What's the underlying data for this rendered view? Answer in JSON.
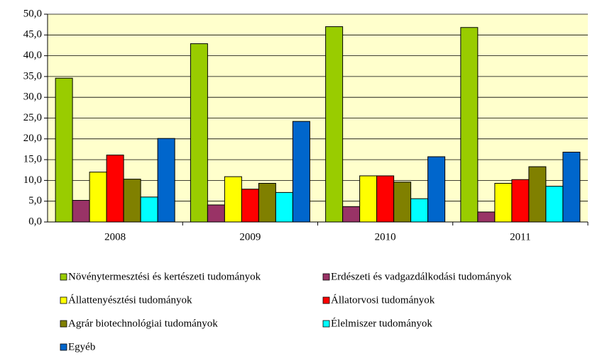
{
  "chart_data": {
    "type": "bar",
    "categories": [
      "2008",
      "2009",
      "2010",
      "2011"
    ],
    "series": [
      {
        "name": "Növénytermesztési és kertészeti tudományok",
        "color": "#99cc00",
        "values": [
          34.6,
          42.9,
          47.0,
          46.8
        ]
      },
      {
        "name": "Erdészeti és vadgazdálkodási tudományok",
        "color": "#993366",
        "values": [
          5.2,
          4.1,
          3.7,
          2.4
        ]
      },
      {
        "name": "Állattenyésztési tudományok",
        "color": "#ffff00",
        "values": [
          12.0,
          10.9,
          11.1,
          9.3
        ]
      },
      {
        "name": "Állatorvosi tudományok",
        "color": "#ff0000",
        "values": [
          16.1,
          7.9,
          11.1,
          10.2
        ]
      },
      {
        "name": "Agrár biotechnológiai tudományok",
        "color": "#808000",
        "values": [
          10.3,
          9.3,
          9.6,
          13.3
        ]
      },
      {
        "name": "Élelmiszer tudományok",
        "color": "#00ffff",
        "values": [
          6.0,
          7.1,
          5.6,
          8.6
        ]
      },
      {
        "name": "Egyéb",
        "color": "#0066cc",
        "values": [
          20.1,
          24.2,
          15.7,
          16.8
        ]
      }
    ],
    "ylim": [
      0,
      50
    ],
    "yticks": [
      {
        "value": 0,
        "label": "0,0"
      },
      {
        "value": 5,
        "label": "5,0"
      },
      {
        "value": 10,
        "label": "10,0"
      },
      {
        "value": 15,
        "label": "15,0"
      },
      {
        "value": 20,
        "label": "20,0"
      },
      {
        "value": 25,
        "label": "25,0"
      },
      {
        "value": 30,
        "label": "30,0"
      },
      {
        "value": 35,
        "label": "35,0"
      },
      {
        "value": 40,
        "label": "40,0"
      },
      {
        "value": 45,
        "label": "45,0"
      },
      {
        "value": 50,
        "label": "50,0"
      }
    ],
    "grid": true,
    "background": "#ffffcc"
  }
}
